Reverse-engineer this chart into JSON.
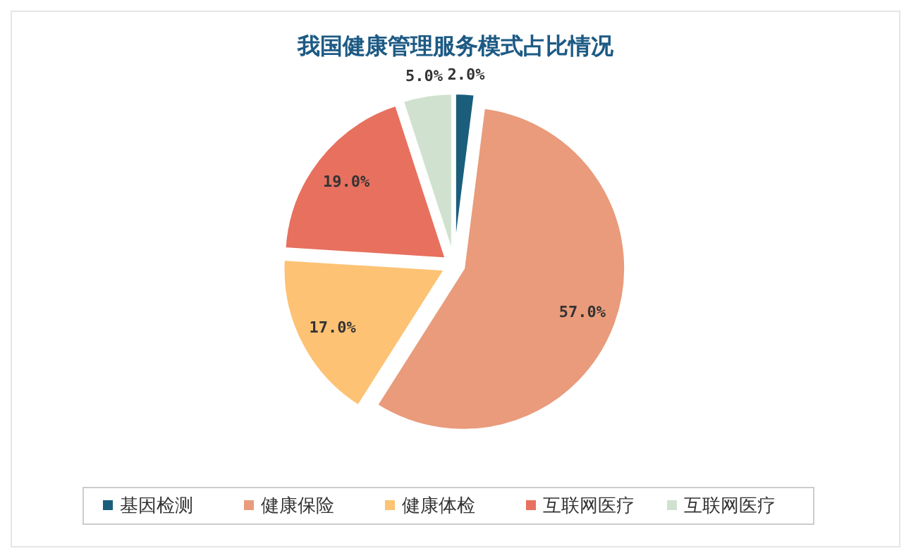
{
  "chart_data": {
    "type": "pie",
    "title": "我国健康管理服务模式占比情况",
    "categories": [
      "基因检测",
      "健康保险",
      "健康体检",
      "互联网医疗",
      "互联网医疗"
    ],
    "values": [
      2.0,
      57.0,
      17.0,
      19.0,
      5.0
    ],
    "value_labels": [
      "2.0%",
      "57.0%",
      "17.0%",
      "19.0%",
      "5.0%"
    ],
    "colors": [
      "#1b5e7b",
      "#e99b7b",
      "#fdc273",
      "#e8705f",
      "#d0e2cf"
    ],
    "legend": "bottom"
  }
}
